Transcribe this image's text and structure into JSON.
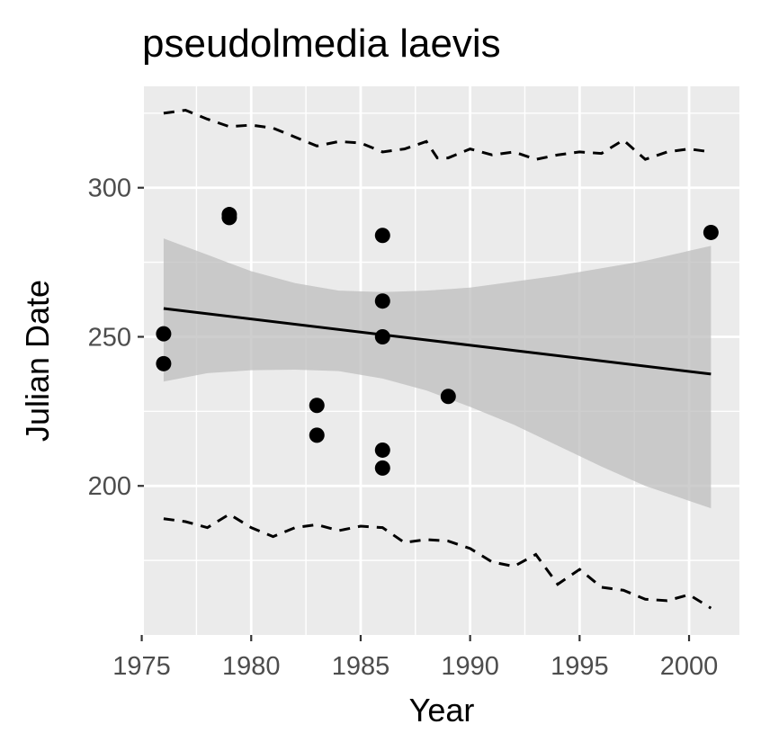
{
  "chart_data": {
    "type": "scatter",
    "title": "pseudolmedia laevis",
    "xlabel": "Year",
    "ylabel": "Julian Date",
    "xlim": [
      1975.1,
      2002.3
    ],
    "ylim": [
      150,
      334
    ],
    "x_ticks": [
      1975,
      1980,
      1985,
      1990,
      1995,
      2000
    ],
    "y_ticks": [
      200,
      250,
      300
    ],
    "grid": true,
    "panel_background": "#ebebeb",
    "grid_color": "#ffffff",
    "point_color": "#000000",
    "ribbon_color": "#bdbdbd",
    "points": [
      {
        "x": 1976,
        "y": 251
      },
      {
        "x": 1976,
        "y": 241
      },
      {
        "x": 1979,
        "y": 291
      },
      {
        "x": 1979,
        "y": 290
      },
      {
        "x": 1983,
        "y": 227
      },
      {
        "x": 1983,
        "y": 217
      },
      {
        "x": 1986,
        "y": 284
      },
      {
        "x": 1986,
        "y": 262
      },
      {
        "x": 1986,
        "y": 250
      },
      {
        "x": 1986,
        "y": 212
      },
      {
        "x": 1986,
        "y": 206
      },
      {
        "x": 1989,
        "y": 230
      },
      {
        "x": 2001,
        "y": 285
      }
    ],
    "trend_line": {
      "x": [
        1976,
        2001
      ],
      "y": [
        259.5,
        237.5
      ]
    },
    "confidence_band": {
      "x": [
        1976,
        1978,
        1980,
        1982,
        1984,
        1986,
        1988,
        1990,
        1992,
        1994,
        1996,
        1998,
        2001
      ],
      "upper": [
        283,
        277.5,
        272,
        268,
        265.5,
        265,
        265.5,
        266.5,
        268.5,
        270.5,
        273,
        275.5,
        280.5
      ],
      "lower": [
        235,
        237.8,
        238.8,
        239,
        238.5,
        236,
        232,
        226.5,
        220.5,
        213.5,
        206.5,
        200,
        192.5
      ]
    },
    "upper_dashed": {
      "x": [
        1976,
        1977,
        1978,
        1979,
        1980,
        1981,
        1982,
        1983,
        1984,
        1985,
        1986,
        1987,
        1988,
        1988.5,
        1989,
        1990,
        1991,
        1992,
        1993,
        1994,
        1995,
        1996,
        1997,
        1998,
        1999,
        2000,
        2001
      ],
      "y": [
        325,
        326,
        323,
        320.5,
        321,
        320,
        317,
        314,
        315.5,
        315,
        312,
        313,
        315.5,
        310,
        310,
        313,
        311,
        312,
        309.5,
        311,
        312,
        311.5,
        316,
        309.5,
        312,
        313,
        312
      ]
    },
    "lower_dashed": {
      "x": [
        1976,
        1977,
        1978,
        1979,
        1980,
        1981,
        1982,
        1983,
        1984,
        1985,
        1986,
        1987,
        1988,
        1989,
        1990,
        1991,
        1992,
        1993,
        1994,
        1995,
        1996,
        1997,
        1998,
        1999,
        2000,
        2001
      ],
      "y": [
        189,
        188,
        186,
        190.5,
        186,
        183,
        186,
        187,
        185,
        186.5,
        186,
        181,
        182,
        181.5,
        179,
        174.5,
        173,
        177,
        167,
        172,
        166,
        165,
        162,
        161.5,
        163.5,
        159
      ]
    }
  }
}
